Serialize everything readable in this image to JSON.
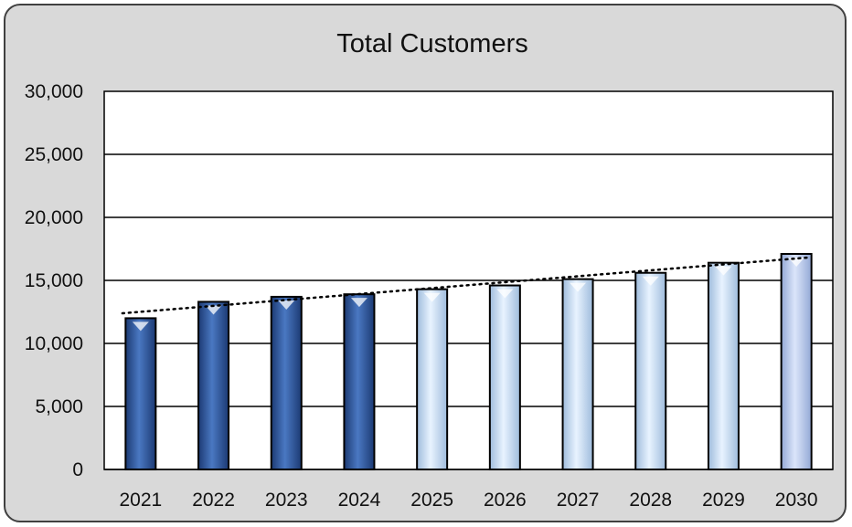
{
  "chart_data": {
    "type": "bar",
    "title": "Total Customers",
    "categories": [
      "2021",
      "2022",
      "2023",
      "2024",
      "2025",
      "2026",
      "2027",
      "2028",
      "2029",
      "2030"
    ],
    "series": [
      {
        "values": [
          12000,
          13300,
          13700,
          13900,
          14300,
          14600,
          15100,
          15600,
          16400,
          17100
        ]
      }
    ],
    "bar_styles": [
      "actual",
      "actual",
      "actual",
      "actual",
      "forecast",
      "forecast",
      "forecast",
      "forecast",
      "forecast",
      "forecast-highlight"
    ],
    "trendline": {
      "type": "linear",
      "style": "dotted"
    },
    "ylim": [
      0,
      30000
    ],
    "yticks": [
      "0",
      "5,000",
      "10,000",
      "15,000",
      "20,000",
      "25,000",
      "30,000"
    ],
    "grid": true,
    "legend": "none",
    "colors": {
      "actual": "#2f5597",
      "forecast": "#bdd7ee",
      "forecast-highlight": "#b4c7e7",
      "background": "#d9d9d9",
      "plot": "#ffffff"
    }
  }
}
